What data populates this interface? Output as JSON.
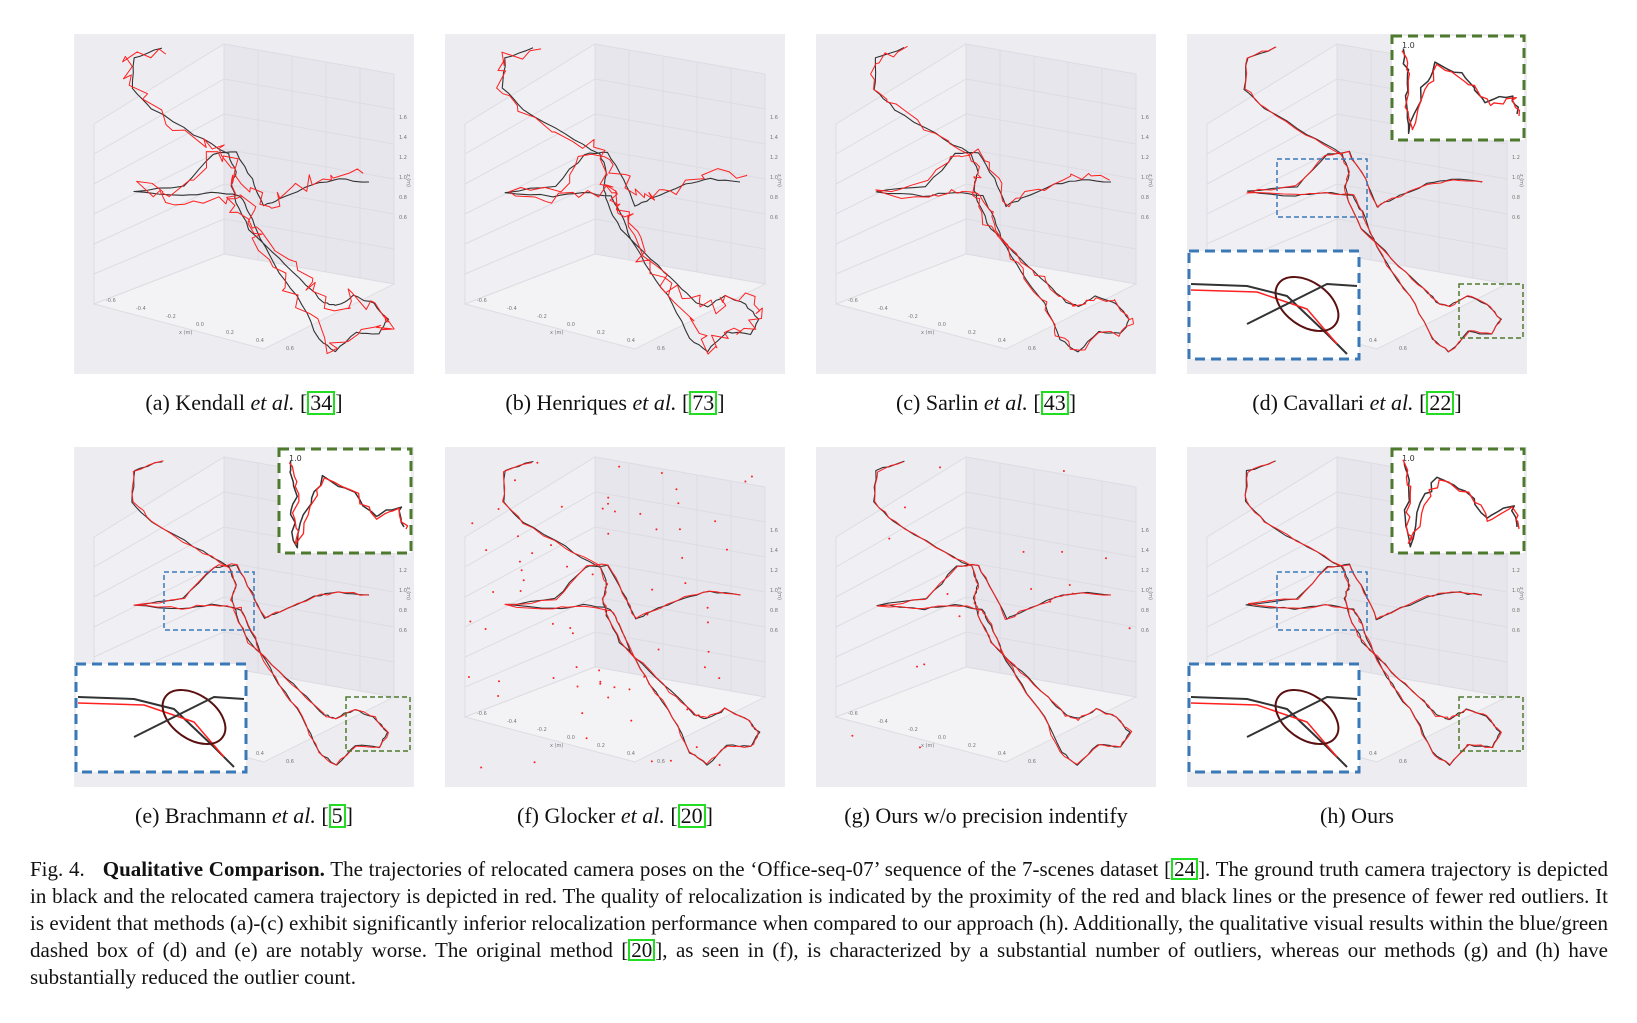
{
  "figure": {
    "panels": [
      {
        "id": "a",
        "prefix": "(a) Kendall ",
        "etal": "et al.",
        "cite_open": " [",
        "cite": "34",
        "cite_close": "]",
        "style": "noisy"
      },
      {
        "id": "b",
        "prefix": "(b) Henriques ",
        "etal": "et al.",
        "cite_open": " [",
        "cite": "73",
        "cite_close": "]",
        "style": "noisy"
      },
      {
        "id": "c",
        "prefix": "(c) Sarlin ",
        "etal": "et al.",
        "cite_open": " [",
        "cite": "43",
        "cite_close": "]",
        "style": "medium"
      },
      {
        "id": "d",
        "prefix": "(d) Cavallari ",
        "etal": "et al.",
        "cite_open": " [",
        "cite": "22",
        "cite_close": "]",
        "style": "good",
        "insets": true
      },
      {
        "id": "e",
        "prefix": "(e) Brachmann ",
        "etal": "et al.",
        "cite_open": " [",
        "cite": "5",
        "cite_close": "]",
        "style": "good",
        "insets": true
      },
      {
        "id": "f",
        "prefix": "(f) Glocker ",
        "etal": "et al.",
        "cite_open": " [",
        "cite": "20",
        "cite_close": "]",
        "style": "outliers"
      },
      {
        "id": "g",
        "prefix": "(g) Ours w/o precision indentify",
        "etal": "",
        "cite_open": "",
        "cite": "",
        "cite_close": "",
        "style": "few-outliers"
      },
      {
        "id": "h",
        "prefix": "(h) Ours",
        "etal": "",
        "cite_open": "",
        "cite": "",
        "cite_close": "",
        "style": "good",
        "insets": true
      }
    ],
    "axis_label_z": "z (m)",
    "axis_label_x": "x (m)",
    "z_ticks": [
      "1.6",
      "1.4",
      "1.2",
      "1.0",
      "0.8",
      "0.6"
    ],
    "x_ticks": [
      "-0.6",
      "-0.4",
      "-0.2",
      "0.0",
      "0.2",
      "0.4",
      "0.6"
    ],
    "inset_label": "1.0",
    "colors": {
      "ground_truth": "#333333",
      "relocated": "#ff2020",
      "panel_bg": "#ececf1",
      "inset_blue": "#3a78b8",
      "inset_green": "#4e7a2e",
      "cite_box": "#22dd22"
    }
  },
  "caption": {
    "label": "Fig. 4.",
    "title": "Qualitative Comparison.",
    "text1": " The trajectories of relocated camera poses on the ‘Office-seq-07’ sequence of the 7-scenes dataset [",
    "cite1": "24",
    "text2": "]. The ground truth camera trajectory is depicted in black and the relocated camera trajectory is depicted in red. The quality of relocalization is indicated by the proximity of the red and black lines or the presence of fewer red outliers. It is evident that methods (a)-(c) exhibit significantly inferior relocalization performance when compared to our approach (h). Additionally, the qualitative visual results within the blue/green dashed box of (d) and (e) are notably worse. The original method [",
    "cite2": "20",
    "text3": "], as seen in (f), is characterized by a substantial number of outliers, whereas our methods (g) and (h) have substantially reduced the outlier count."
  }
}
